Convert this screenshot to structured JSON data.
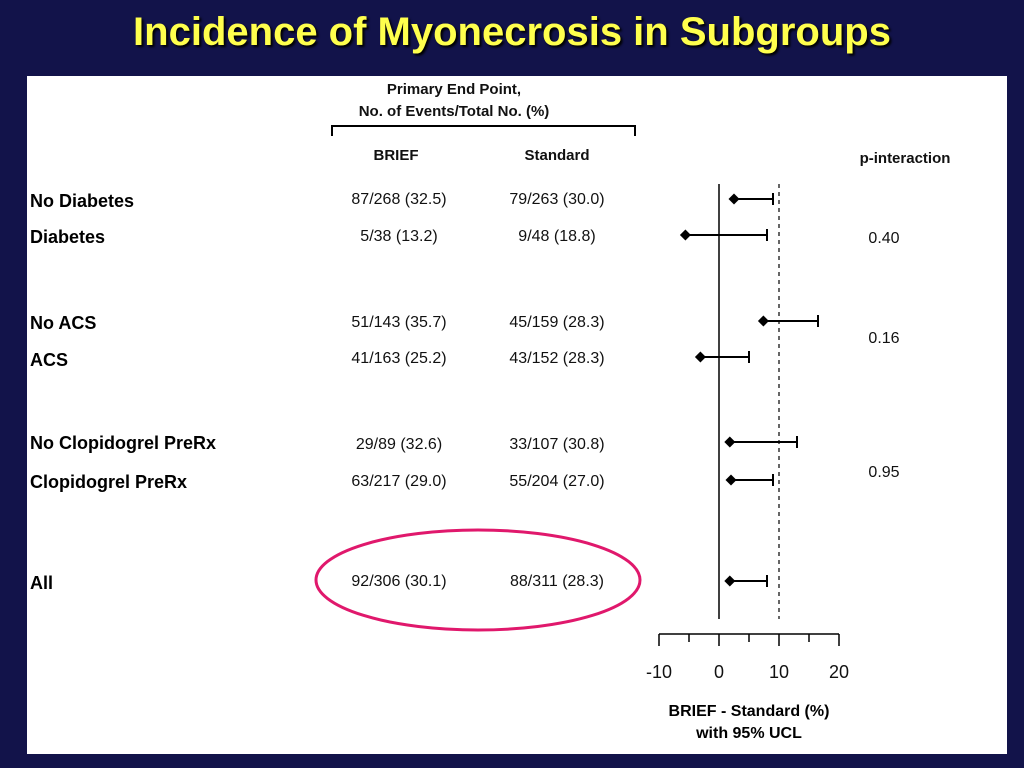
{
  "slide_title": "Incidence of Myonecrosis in Subgroups",
  "table": {
    "group_header_line1": "Primary End Point,",
    "group_header_line2": "No. of Events/Total No. (%)",
    "col_brief": "BRIEF",
    "col_standard": "Standard",
    "col_pinteraction": "p-interaction",
    "rows": [
      {
        "label": "No Diabetes",
        "brief": "87/268 (32.5)",
        "standard": "79/263 (30.0)"
      },
      {
        "label": "Diabetes",
        "brief": "5/38 (13.2)",
        "standard": "9/48 (18.8)"
      },
      {
        "label": "No ACS",
        "brief": "51/143 (35.7)",
        "standard": "45/159 (28.3)"
      },
      {
        "label": "ACS",
        "brief": "41/163 (25.2)",
        "standard": "43/152 (28.3)"
      },
      {
        "label": "No Clopidogrel PreRx",
        "brief": "29/89 (32.6)",
        "standard": "33/107 (30.8)"
      },
      {
        "label": "Clopidogrel PreRx",
        "brief": "63/217 (29.0)",
        "standard": "55/204 (27.0)"
      },
      {
        "label": "All",
        "brief": "92/306 (30.1)",
        "standard": "88/311 (28.3)"
      }
    ],
    "p_values": [
      "0.40",
      "0.16",
      "0.95"
    ]
  },
  "chart_data": {
    "type": "scatter",
    "x_axis": {
      "label_line1": "BRIEF - Standard (%)",
      "label_line2": "with 95% UCL",
      "range": [
        -10,
        20
      ],
      "ticks": [
        "-10",
        "0",
        "10",
        "20"
      ],
      "zero_line": 0,
      "reference_line": 10
    },
    "points": [
      {
        "row": "No Diabetes",
        "diff": 2.5,
        "ucl": 9
      },
      {
        "row": "Diabetes",
        "diff": -5.6,
        "ucl": 8
      },
      {
        "row": "No ACS",
        "diff": 7.4,
        "ucl": 16.5
      },
      {
        "row": "ACS",
        "diff": -3.1,
        "ucl": 5
      },
      {
        "row": "No Clopidogrel PreRx",
        "diff": 1.8,
        "ucl": 13
      },
      {
        "row": "Clopidogrel PreRx",
        "diff": 2.0,
        "ucl": 9
      },
      {
        "row": "All",
        "diff": 1.8,
        "ucl": 8
      }
    ]
  },
  "colors": {
    "background": "#12134a",
    "title": "#ffff4d",
    "highlight_oval": "#e0186c"
  }
}
